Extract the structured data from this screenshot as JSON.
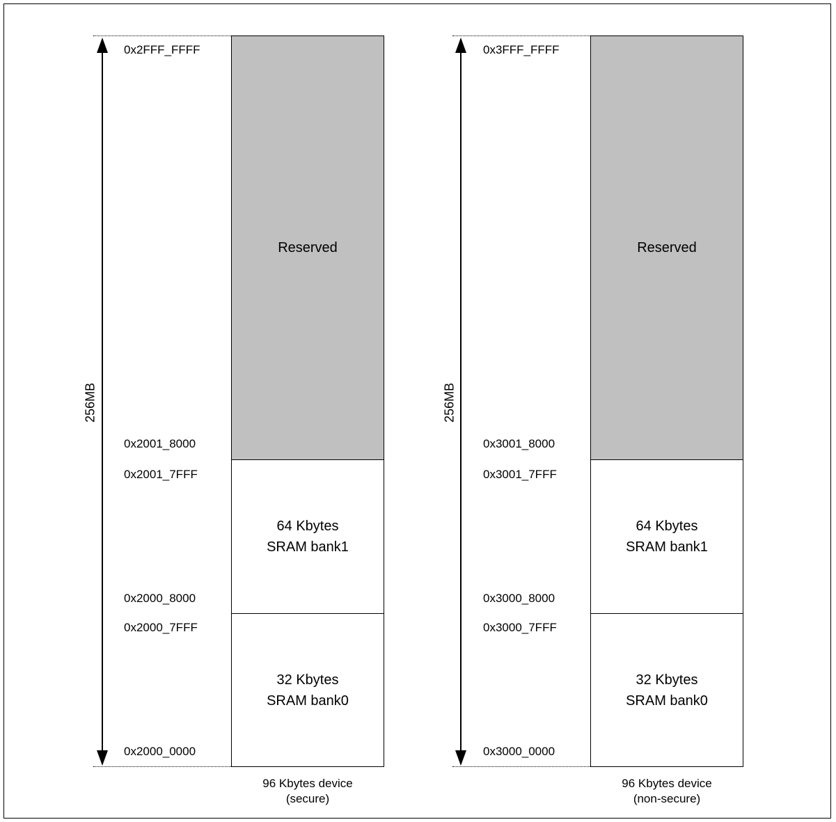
{
  "maps": [
    {
      "id": "secure",
      "size_label": "256MB",
      "top_address": "0x2FFF_FFFF",
      "caption_line1": "96 Kbytes device",
      "caption_line2": "(secure)",
      "blocks": [
        {
          "name": "reserved",
          "line1": "Reserved",
          "line2": "",
          "start": "0x2001_8000",
          "end": ""
        },
        {
          "name": "bank1",
          "line1": "64 Kbytes",
          "line2": "SRAM bank1",
          "start": "0x2000_8000",
          "end": "0x2001_7FFF"
        },
        {
          "name": "bank0",
          "line1": "32 Kbytes",
          "line2": "SRAM bank0",
          "start": "0x2000_0000",
          "end": "0x2000_7FFF"
        }
      ]
    },
    {
      "id": "non-secure",
      "size_label": "256MB",
      "top_address": "0x3FFF_FFFF",
      "caption_line1": "96 Kbytes device",
      "caption_line2": "(non-secure)",
      "blocks": [
        {
          "name": "reserved",
          "line1": "Reserved",
          "line2": "",
          "start": "0x3001_8000",
          "end": ""
        },
        {
          "name": "bank1",
          "line1": "64 Kbytes",
          "line2": "SRAM bank1",
          "start": "0x3000_8000",
          "end": "0x3001_7FFF"
        },
        {
          "name": "bank0",
          "line1": "32 Kbytes",
          "line2": "SRAM bank0",
          "start": "0x3000_0000",
          "end": "0x3000_7FFF"
        }
      ]
    }
  ],
  "colors": {
    "reserved_fill": "#c0c0c0",
    "sram_fill": "#ffffff",
    "line": "#000000"
  }
}
